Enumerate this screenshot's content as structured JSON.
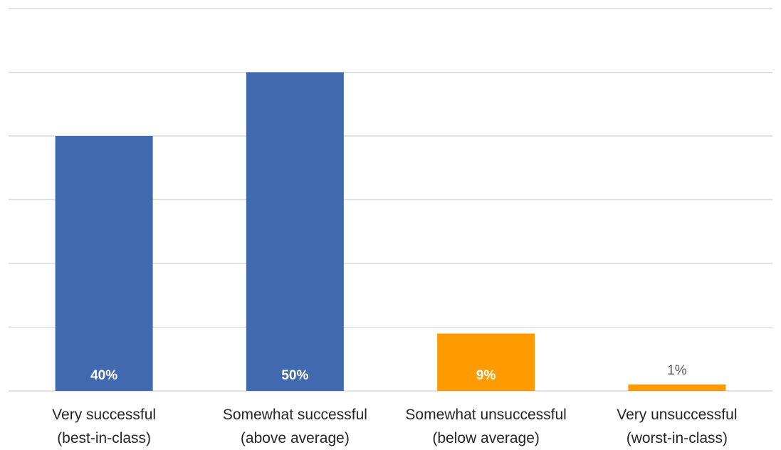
{
  "chart_data": {
    "type": "bar",
    "title": "",
    "xlabel": "",
    "ylabel": "",
    "ylim": [
      0,
      60
    ],
    "grid": true,
    "legend": "none",
    "categories": [
      [
        "Very successful",
        "(best-in-class)"
      ],
      [
        "Somewhat successful",
        "(above average)"
      ],
      [
        "Somewhat unsuccessful",
        "(below average)"
      ],
      [
        "Very unsuccessful",
        "(worst-in-class)"
      ]
    ],
    "values": [
      40,
      50,
      9,
      1
    ],
    "data_labels": [
      "40%",
      "50%",
      "9%",
      "1%"
    ],
    "colors": [
      "#4169b0",
      "#4169b0",
      "#ff9a00",
      "#ff9a00"
    ],
    "label_position": [
      "inside-base",
      "inside-base",
      "inside-base",
      "outside-end"
    ]
  }
}
